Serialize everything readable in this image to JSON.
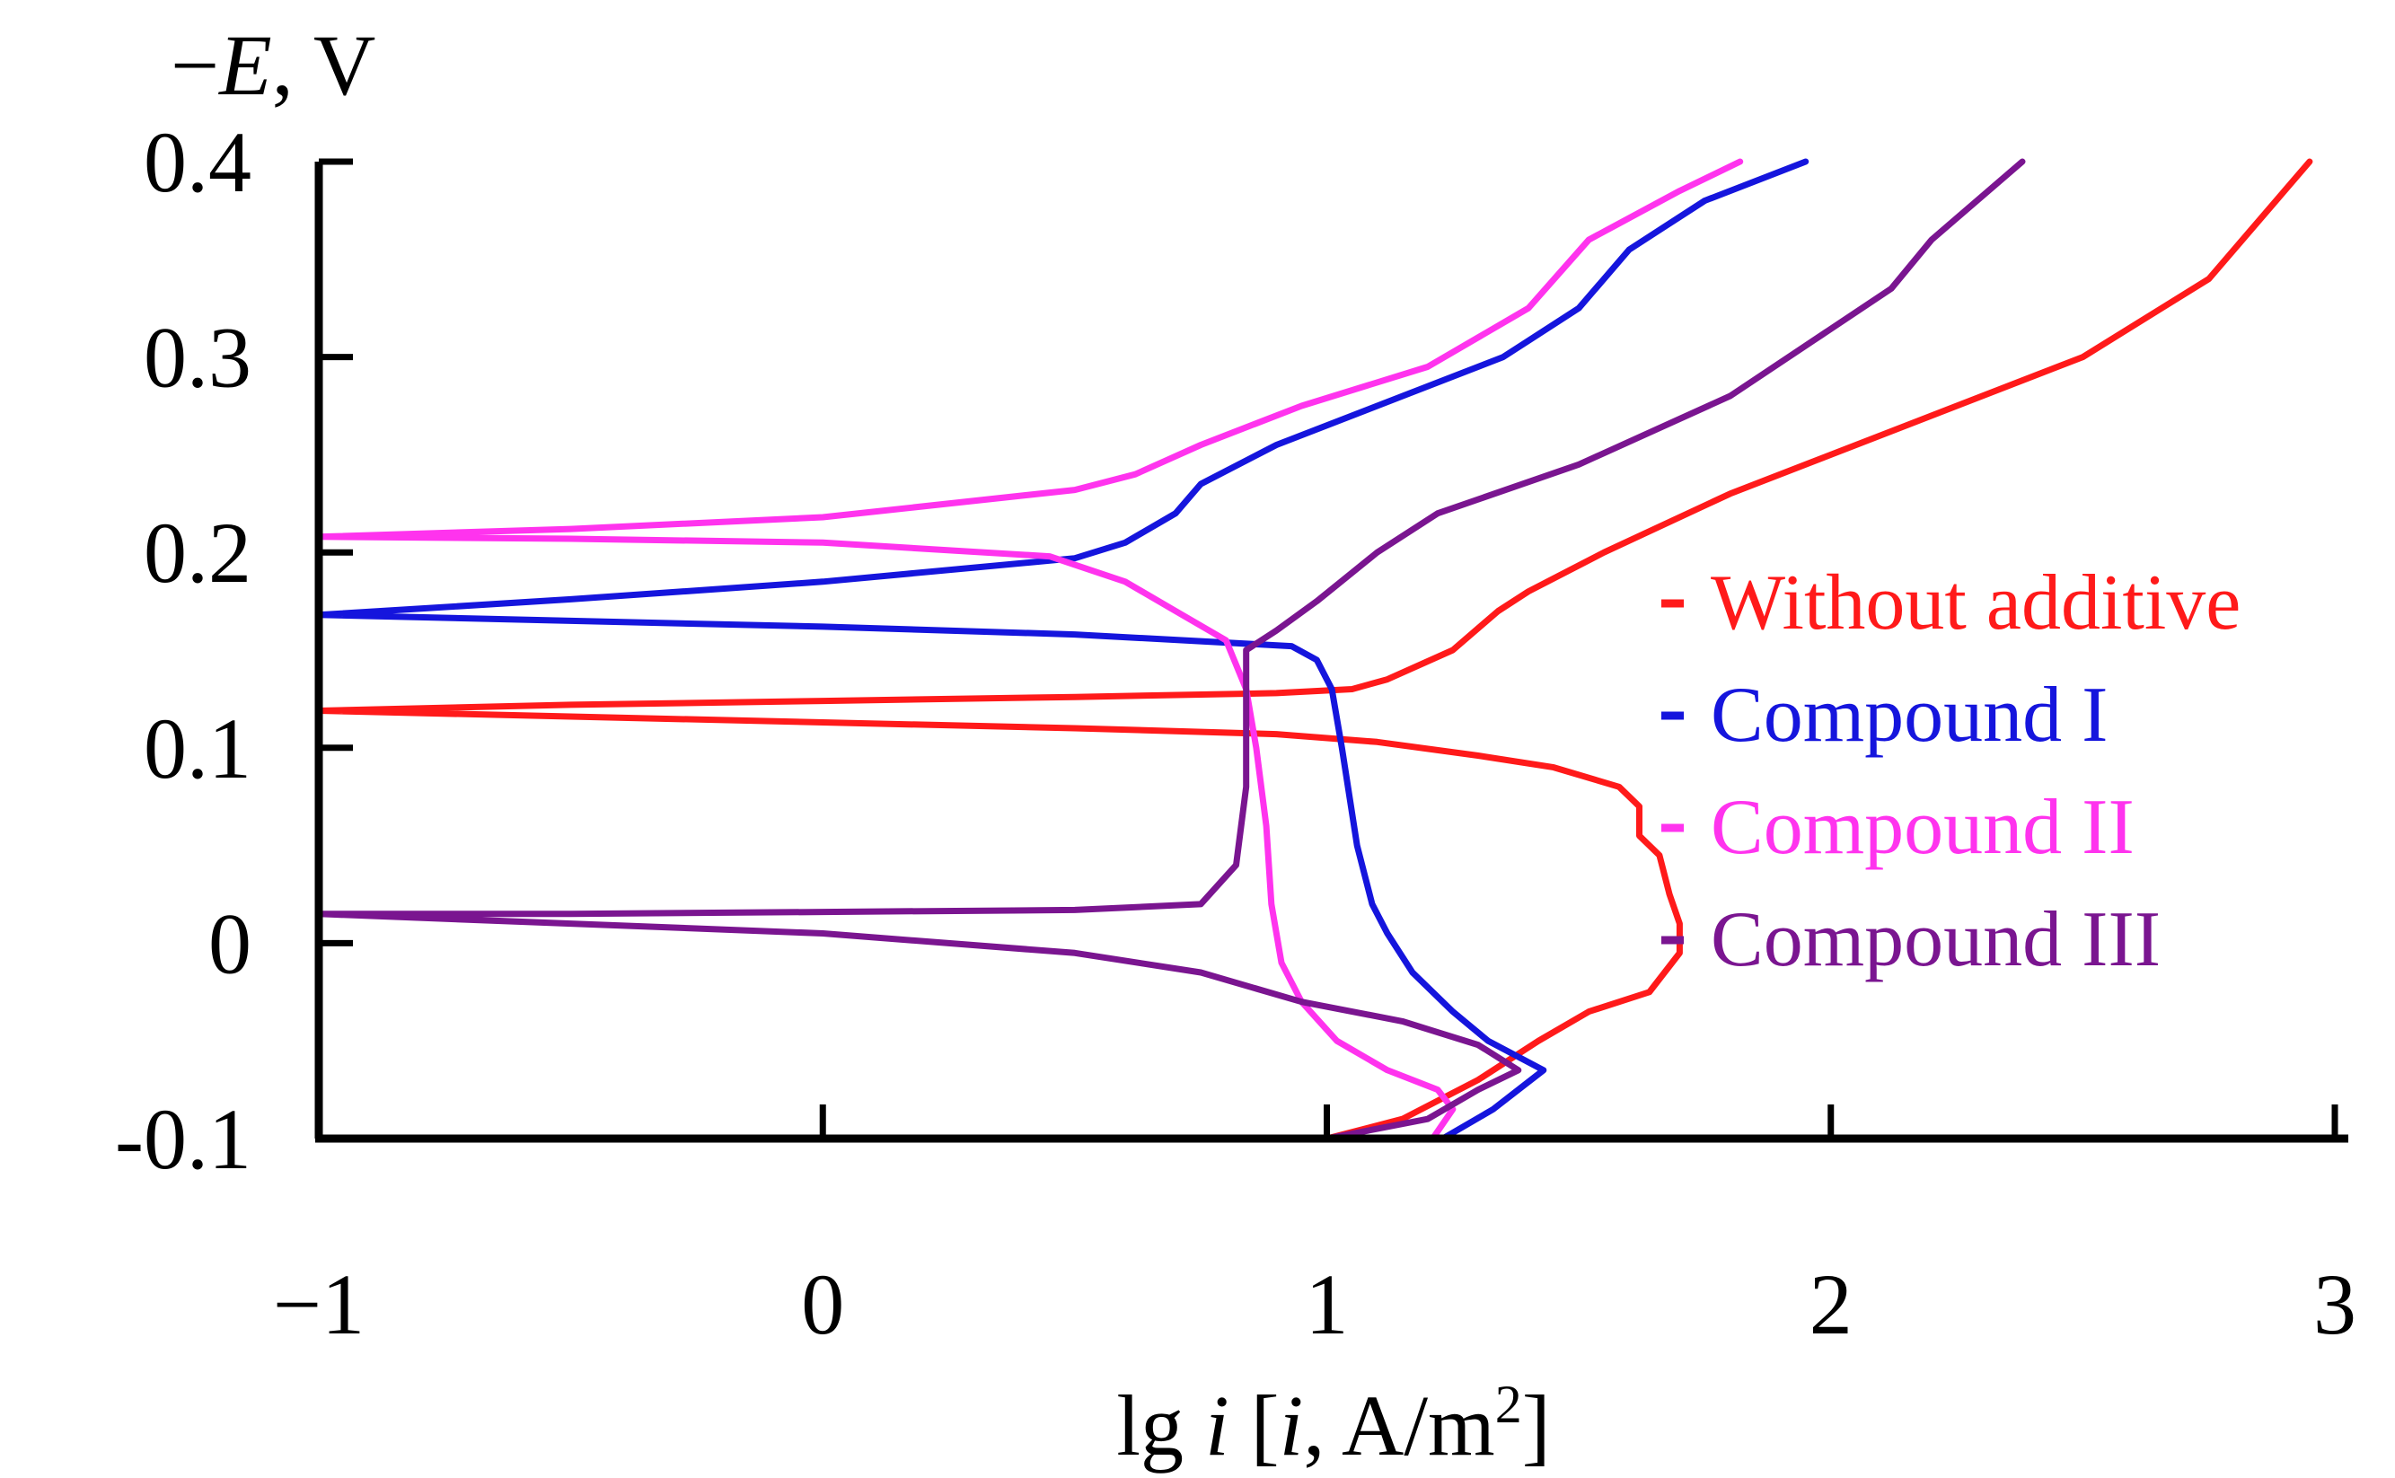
{
  "chart_data": {
    "type": "line",
    "title": "",
    "ylabel": {
      "sign": "−",
      "var": "E",
      "unit": ", V"
    },
    "xlabel": {
      "pre": "lg ",
      "var": "i",
      "mid": " [",
      "var2": "i",
      "unit": ", A/m",
      "sup": "2",
      "end": "]"
    },
    "xlim": [
      -1,
      3
    ],
    "ylim": [
      -0.1,
      0.4
    ],
    "x_ticks": [
      -1,
      0,
      1,
      2,
      3
    ],
    "x_tick_labels": [
      "−1",
      "0",
      "1",
      "2",
      "3"
    ],
    "y_ticks": [
      -0.1,
      0,
      0.1,
      0.2,
      0.3,
      0.4
    ],
    "y_tick_labels": [
      "-0.1",
      "0",
      "0.1",
      "0.2",
      "0.3",
      "0.4"
    ],
    "grid": false,
    "legend_position": "right",
    "series": [
      {
        "name": "Without additive",
        "color": "#ff1a1a",
        "points": [
          [
            1.0,
            -0.1
          ],
          [
            1.15,
            -0.09
          ],
          [
            1.3,
            -0.07
          ],
          [
            1.42,
            -0.05
          ],
          [
            1.52,
            -0.035
          ],
          [
            1.64,
            -0.025
          ],
          [
            1.7,
            -0.005
          ],
          [
            1.7,
            0.01
          ],
          [
            1.68,
            0.025
          ],
          [
            1.66,
            0.045
          ],
          [
            1.62,
            0.055
          ],
          [
            1.62,
            0.07
          ],
          [
            1.58,
            0.08
          ],
          [
            1.45,
            0.09
          ],
          [
            1.3,
            0.096
          ],
          [
            1.1,
            0.103
          ],
          [
            0.9,
            0.107
          ],
          [
            0.5,
            0.11
          ],
          [
            0.0,
            0.113
          ],
          [
            -0.5,
            0.116
          ],
          [
            -1.0,
            0.119
          ],
          [
            -0.5,
            0.122
          ],
          [
            0.0,
            0.124
          ],
          [
            0.5,
            0.126
          ],
          [
            0.9,
            0.128
          ],
          [
            1.05,
            0.13
          ],
          [
            1.12,
            0.135
          ],
          [
            1.25,
            0.15
          ],
          [
            1.34,
            0.17
          ],
          [
            1.4,
            0.18
          ],
          [
            1.55,
            0.2
          ],
          [
            1.8,
            0.23
          ],
          [
            2.1,
            0.26
          ],
          [
            2.5,
            0.3
          ],
          [
            2.75,
            0.34
          ],
          [
            2.95,
            0.4
          ]
        ]
      },
      {
        "name": "Compound I",
        "color": "#1515dd",
        "points": [
          [
            1.23,
            -0.1
          ],
          [
            1.33,
            -0.085
          ],
          [
            1.43,
            -0.065
          ],
          [
            1.32,
            -0.05
          ],
          [
            1.25,
            -0.035
          ],
          [
            1.17,
            -0.015
          ],
          [
            1.12,
            0.005
          ],
          [
            1.09,
            0.02
          ],
          [
            1.06,
            0.05
          ],
          [
            1.03,
            0.1
          ],
          [
            1.01,
            0.13
          ],
          [
            0.98,
            0.145
          ],
          [
            0.93,
            0.152
          ],
          [
            0.5,
            0.158
          ],
          [
            0.0,
            0.162
          ],
          [
            -0.5,
            0.165
          ],
          [
            -1.0,
            0.168
          ],
          [
            -0.5,
            0.176
          ],
          [
            0.0,
            0.185
          ],
          [
            0.5,
            0.197
          ],
          [
            0.6,
            0.205
          ],
          [
            0.7,
            0.22
          ],
          [
            0.75,
            0.235
          ],
          [
            0.9,
            0.255
          ],
          [
            1.15,
            0.28
          ],
          [
            1.35,
            0.3
          ],
          [
            1.5,
            0.325
          ],
          [
            1.6,
            0.355
          ],
          [
            1.75,
            0.38
          ],
          [
            1.95,
            0.4
          ]
        ]
      },
      {
        "name": "Compound II",
        "color": "#ff33ee",
        "points": [
          [
            1.21,
            -0.1
          ],
          [
            1.25,
            -0.085
          ],
          [
            1.22,
            -0.075
          ],
          [
            1.12,
            -0.065
          ],
          [
            1.02,
            -0.05
          ],
          [
            0.95,
            -0.03
          ],
          [
            0.91,
            -0.01
          ],
          [
            0.89,
            0.02
          ],
          [
            0.88,
            0.06
          ],
          [
            0.86,
            0.1
          ],
          [
            0.84,
            0.13
          ],
          [
            0.8,
            0.155
          ],
          [
            0.7,
            0.17
          ],
          [
            0.6,
            0.185
          ],
          [
            0.45,
            0.198
          ],
          [
            0.0,
            0.205
          ],
          [
            -0.5,
            0.207
          ],
          [
            -1.0,
            0.208
          ],
          [
            -0.5,
            0.212
          ],
          [
            0.0,
            0.218
          ],
          [
            0.5,
            0.232
          ],
          [
            0.62,
            0.24
          ],
          [
            0.75,
            0.255
          ],
          [
            0.95,
            0.275
          ],
          [
            1.2,
            0.295
          ],
          [
            1.4,
            0.325
          ],
          [
            1.52,
            0.36
          ],
          [
            1.7,
            0.385
          ],
          [
            1.82,
            0.4
          ]
        ]
      },
      {
        "name": "Compound III",
        "color": "#7a1590",
        "points": [
          [
            1.0,
            -0.1
          ],
          [
            1.2,
            -0.09
          ],
          [
            1.3,
            -0.075
          ],
          [
            1.38,
            -0.065
          ],
          [
            1.3,
            -0.052
          ],
          [
            1.15,
            -0.04
          ],
          [
            0.95,
            -0.03
          ],
          [
            0.75,
            -0.015
          ],
          [
            0.5,
            -0.005
          ],
          [
            0.0,
            0.005
          ],
          [
            -0.5,
            0.01
          ],
          [
            -1.0,
            0.015
          ],
          [
            -0.5,
            0.015
          ],
          [
            0.0,
            0.016
          ],
          [
            0.5,
            0.017
          ],
          [
            0.75,
            0.02
          ],
          [
            0.82,
            0.04
          ],
          [
            0.84,
            0.08
          ],
          [
            0.84,
            0.12
          ],
          [
            0.84,
            0.15
          ],
          [
            0.9,
            0.16
          ],
          [
            0.98,
            0.175
          ],
          [
            1.1,
            0.2
          ],
          [
            1.22,
            0.22
          ],
          [
            1.5,
            0.245
          ],
          [
            1.8,
            0.28
          ],
          [
            2.12,
            0.335
          ],
          [
            2.2,
            0.36
          ],
          [
            2.38,
            0.4
          ]
        ]
      }
    ]
  }
}
